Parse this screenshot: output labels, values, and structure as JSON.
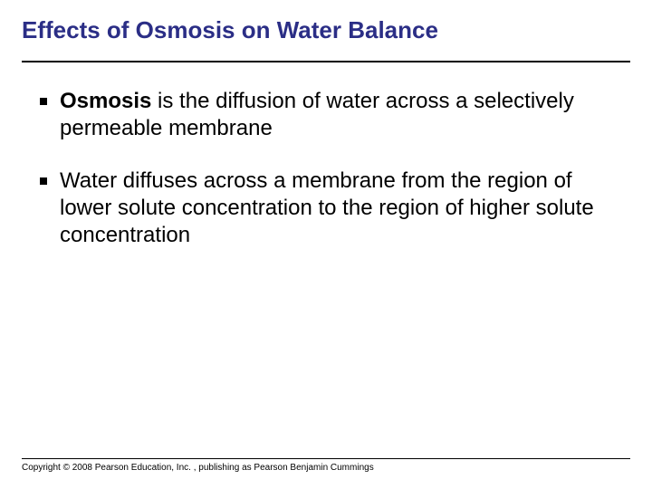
{
  "slide": {
    "title": "Effects of Osmosis on Water Balance",
    "title_color": "#2b2e86",
    "title_fontsize": 26,
    "bullets": [
      {
        "bold_lead": "Osmosis",
        "rest": " is the diffusion of water across a selectively permeable membrane"
      },
      {
        "bold_lead": "",
        "rest": "Water diffuses across a membrane from the region of lower solute concentration to the region of higher solute concentration"
      }
    ],
    "body_fontsize": 24,
    "body_color": "#000000",
    "copyright": "Copyright © 2008 Pearson Education, Inc. , publishing as Pearson Benjamin Cummings",
    "background_color": "#ffffff",
    "rule_color": "#000000"
  }
}
